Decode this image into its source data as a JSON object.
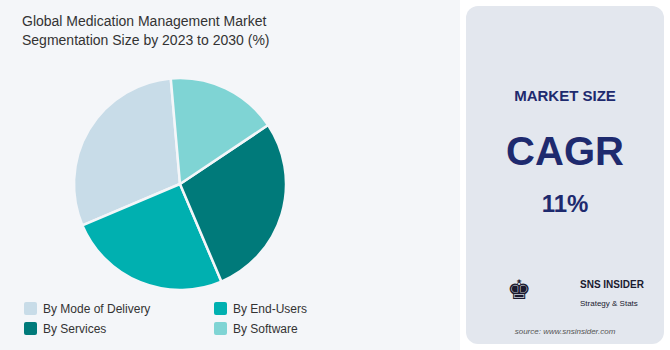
{
  "chart_data": {
    "type": "pie",
    "title": "Global Medication Management Market\nSegmentation Size by 2023 to 2030 (%)",
    "categories": [
      "By Mode of Delivery",
      "By End-Users",
      "By Services",
      "By Software"
    ],
    "values": [
      30,
      25,
      28,
      17
    ],
    "colors": [
      "#c8dce8",
      "#00b0b0",
      "#007a7a",
      "#7fd4d4"
    ],
    "legend": "bottom",
    "annotations": [
      "MARKET SIZE",
      "CAGR",
      "11%",
      "♚",
      "SNS INSIDER",
      "Strategy & Stats",
      "source: www.snsinsider.com"
    ]
  }
}
